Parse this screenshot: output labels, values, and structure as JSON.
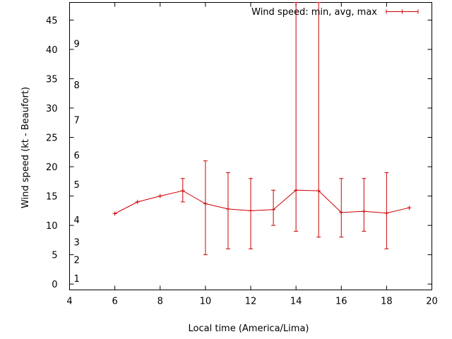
{
  "chart_data": {
    "type": "line",
    "title": "",
    "xlabel": "Local time (America/Lima)",
    "ylabel": "Wind speed (kt - Beaufort)",
    "xlim": [
      4,
      20
    ],
    "ylim": [
      -1,
      48
    ],
    "x_ticks": [
      4,
      6,
      8,
      10,
      12,
      14,
      16,
      18,
      20
    ],
    "y_ticks": [
      0,
      5,
      10,
      15,
      20,
      25,
      30,
      35,
      40,
      45
    ],
    "legend": "top-right",
    "grid": false,
    "colors": {
      "series": "#cc0000",
      "axis": "#000000"
    },
    "series": [
      {
        "name": "Wind speed: min, avg, max",
        "x": [
          6,
          7,
          8,
          9,
          10,
          11,
          12,
          13,
          14,
          15,
          16,
          17,
          18,
          19
        ],
        "avg": [
          12,
          14,
          15,
          15.9,
          13.7,
          12.8,
          12.5,
          12.7,
          16,
          15.9,
          12.2,
          12.4,
          12.1,
          13
        ],
        "min": [
          null,
          null,
          null,
          14,
          5,
          6,
          6,
          10,
          9,
          8,
          8,
          9,
          6,
          null
        ],
        "max": [
          null,
          null,
          null,
          18,
          21,
          19,
          18,
          16,
          48,
          48,
          18,
          18,
          19,
          null
        ]
      }
    ],
    "beaufort": [
      {
        "label": "1",
        "y": 1
      },
      {
        "label": "2",
        "y": 4.2
      },
      {
        "label": "3",
        "y": 7.2
      },
      {
        "label": "4",
        "y": 11
      },
      {
        "label": "5",
        "y": 17
      },
      {
        "label": "6",
        "y": 22
      },
      {
        "label": "7",
        "y": 28
      },
      {
        "label": "8",
        "y": 34
      },
      {
        "label": "9",
        "y": 41
      }
    ]
  }
}
